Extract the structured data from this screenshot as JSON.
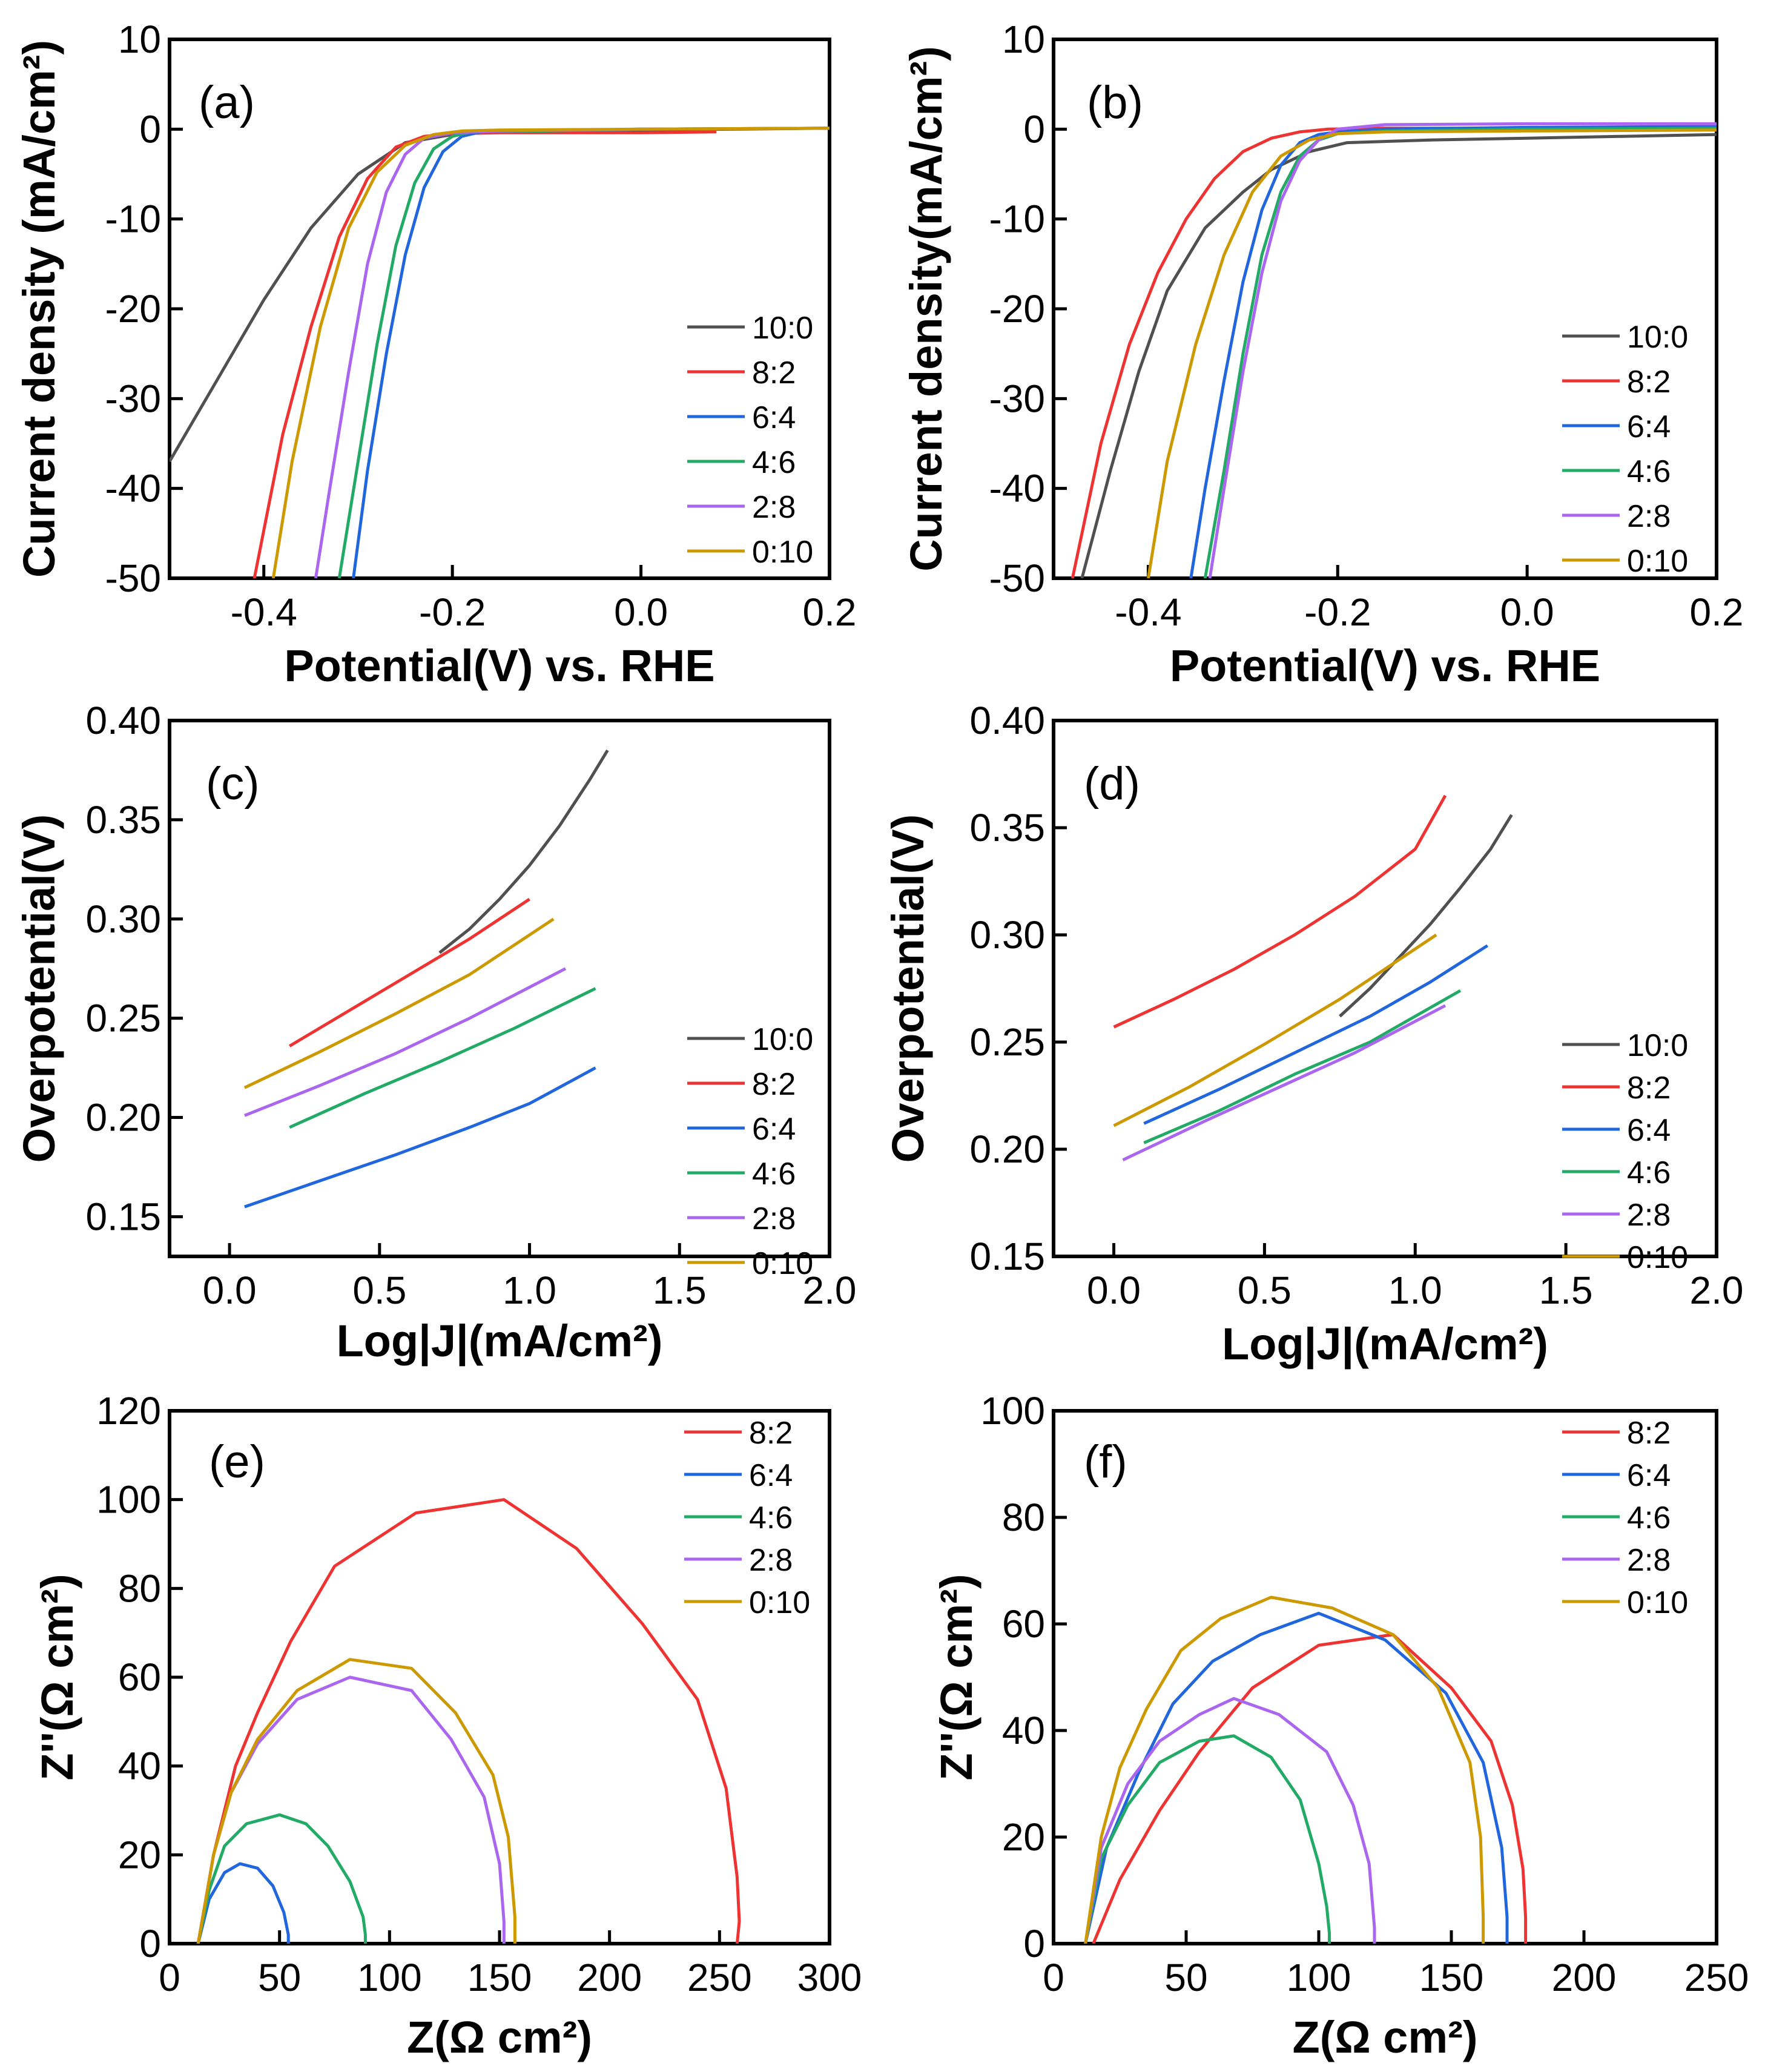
{
  "colors": {
    "10:0": "#505050",
    "8:2": "#ee3333",
    "6:4": "#2266dd",
    "4:6": "#22aa66",
    "2:8": "#aa66ee",
    "0:10": "#cc9900"
  },
  "chart_data": [
    {
      "id": "a",
      "type": "line",
      "title": "(a)",
      "xlabel": "Potential(V) vs. RHE",
      "ylabel": "Current density (mA/cm²)",
      "xlim": [
        -0.5,
        0.2
      ],
      "ylim": [
        -50,
        10
      ],
      "xticks": [
        -0.4,
        -0.2,
        0.0,
        0.2
      ],
      "xtick_labels": [
        "-0.4",
        "-0.2",
        "0.0",
        "0.2"
      ],
      "yticks": [
        10,
        0,
        -10,
        -20,
        -30,
        -40,
        -50
      ],
      "ytick_labels": [
        "10",
        "0",
        "-10",
        "-20",
        "-30",
        "-40",
        "-50"
      ],
      "legend_position": "right-middle",
      "series": [
        {
          "name": "10:0",
          "x": [
            -0.5,
            -0.45,
            -0.4,
            -0.35,
            -0.3,
            -0.25,
            -0.2,
            -0.15,
            -0.1,
            0.0,
            0.1,
            0.2
          ],
          "y": [
            -37,
            -28,
            -19,
            -11,
            -5,
            -1.5,
            -0.6,
            -0.3,
            -0.2,
            -0.1,
            0.0,
            0.1
          ]
        },
        {
          "name": "8:2",
          "x": [
            -0.41,
            -0.38,
            -0.35,
            -0.32,
            -0.29,
            -0.26,
            -0.23,
            -0.2,
            -0.15,
            0.0,
            0.08
          ],
          "y": [
            -50,
            -34,
            -22,
            -12,
            -5.5,
            -2,
            -0.8,
            -0.5,
            -0.4,
            -0.4,
            -0.3
          ]
        },
        {
          "name": "6:4",
          "x": [
            -0.305,
            -0.29,
            -0.27,
            -0.25,
            -0.23,
            -0.21,
            -0.19,
            -0.17,
            -0.1,
            0.0,
            0.2
          ],
          "y": [
            -50,
            -38,
            -25,
            -14,
            -6.5,
            -2.5,
            -0.8,
            -0.3,
            -0.2,
            0.0,
            0.1
          ]
        },
        {
          "name": "4:6",
          "x": [
            -0.32,
            -0.3,
            -0.28,
            -0.26,
            -0.24,
            -0.22,
            -0.2,
            -0.18,
            -0.1,
            0.0,
            0.2
          ],
          "y": [
            -50,
            -37,
            -24,
            -13,
            -6,
            -2.2,
            -0.8,
            -0.3,
            -0.2,
            0.0,
            0.1
          ]
        },
        {
          "name": "2:8",
          "x": [
            -0.345,
            -0.33,
            -0.31,
            -0.29,
            -0.27,
            -0.25,
            -0.23,
            -0.2,
            -0.15,
            0.0,
            0.2
          ],
          "y": [
            -50,
            -40,
            -27,
            -15,
            -7,
            -2.8,
            -1,
            -0.4,
            -0.2,
            0.0,
            0.1
          ]
        },
        {
          "name": "0:10",
          "x": [
            -0.39,
            -0.37,
            -0.34,
            -0.31,
            -0.28,
            -0.25,
            -0.22,
            -0.19,
            -0.15,
            0.0,
            0.2
          ],
          "y": [
            -50,
            -37,
            -22,
            -11,
            -4.8,
            -1.8,
            -0.6,
            -0.2,
            -0.1,
            0.0,
            0.1
          ]
        }
      ]
    },
    {
      "id": "b",
      "type": "line",
      "title": "(b)",
      "xlabel": "Potential(V) vs. RHE",
      "ylabel": "Current density(mA/cm²)",
      "xlim": [
        -0.5,
        0.2
      ],
      "ylim": [
        -50,
        10
      ],
      "xticks": [
        -0.4,
        -0.2,
        0.0,
        0.2
      ],
      "xtick_labels": [
        "-0.4",
        "-0.2",
        "0.0",
        "0.2"
      ],
      "yticks": [
        10,
        0,
        -10,
        -20,
        -30,
        -40,
        -50
      ],
      "ytick_labels": [
        "10",
        "0",
        "-10",
        "-20",
        "-30",
        "-40",
        "-50"
      ],
      "legend_position": "right-middle",
      "series": [
        {
          "name": "10:0",
          "x": [
            -0.47,
            -0.44,
            -0.41,
            -0.38,
            -0.34,
            -0.3,
            -0.27,
            -0.23,
            -0.19,
            -0.1,
            0.0,
            0.1,
            0.2
          ],
          "y": [
            -50,
            -38,
            -27,
            -18,
            -11,
            -7,
            -4.5,
            -2.5,
            -1.5,
            -1.2,
            -1.0,
            -0.8,
            -0.6
          ]
        },
        {
          "name": "8:2",
          "x": [
            -0.48,
            -0.45,
            -0.42,
            -0.39,
            -0.36,
            -0.33,
            -0.3,
            -0.27,
            -0.24,
            -0.21,
            -0.15,
            0.0,
            0.2
          ],
          "y": [
            -50,
            -35,
            -24,
            -16,
            -10,
            -5.5,
            -2.5,
            -1,
            -0.3,
            0.0,
            0.1,
            0.1,
            0.2
          ]
        },
        {
          "name": "6:4",
          "x": [
            -0.355,
            -0.34,
            -0.32,
            -0.3,
            -0.28,
            -0.26,
            -0.24,
            -0.22,
            -0.2,
            -0.15,
            0.0,
            0.2
          ],
          "y": [
            -50,
            -40,
            -28,
            -17,
            -9,
            -4,
            -1.5,
            -0.6,
            -0.3,
            0.0,
            0.2,
            0.3
          ]
        },
        {
          "name": "4:6",
          "x": [
            -0.34,
            -0.32,
            -0.3,
            -0.28,
            -0.26,
            -0.24,
            -0.22,
            -0.2,
            -0.15,
            0.0,
            0.2
          ],
          "y": [
            -50,
            -38,
            -25,
            -14,
            -7,
            -3,
            -1.2,
            -0.5,
            -0.2,
            0.0,
            0.1
          ]
        },
        {
          "name": "2:8",
          "x": [
            -0.335,
            -0.32,
            -0.3,
            -0.28,
            -0.26,
            -0.24,
            -0.22,
            -0.2,
            -0.15,
            0.0,
            0.2
          ],
          "y": [
            -50,
            -40,
            -27,
            -16,
            -8,
            -3.5,
            -1.2,
            0.0,
            0.5,
            0.6,
            0.6
          ]
        },
        {
          "name": "0:10",
          "x": [
            -0.4,
            -0.38,
            -0.35,
            -0.32,
            -0.29,
            -0.26,
            -0.23,
            -0.2,
            -0.15,
            0.0,
            0.2
          ],
          "y": [
            -50,
            -37,
            -24,
            -14,
            -7,
            -3,
            -1.2,
            -0.5,
            -0.3,
            -0.2,
            -0.1
          ]
        }
      ]
    },
    {
      "id": "c",
      "type": "line",
      "title": "(c)",
      "xlabel": "Log|J|(mA/cm²)",
      "ylabel": "Overpotential(V)",
      "xlim": [
        -0.2,
        2.0
      ],
      "ylim": [
        0.13,
        0.4
      ],
      "xticks": [
        0.0,
        0.5,
        1.0,
        1.5,
        2.0
      ],
      "xtick_labels": [
        "0.0",
        "0.5",
        "1.0",
        "1.5",
        "2.0"
      ],
      "yticks": [
        0.4,
        0.35,
        0.3,
        0.25,
        0.2,
        0.15
      ],
      "ytick_labels": [
        "0.40",
        "0.35",
        "0.30",
        "0.25",
        "0.20",
        "0.15"
      ],
      "legend_position": "lower-right",
      "series": [
        {
          "name": "10:0",
          "x": [
            0.7,
            0.8,
            0.9,
            1.0,
            1.1,
            1.2,
            1.26
          ],
          "y": [
            0.283,
            0.295,
            0.31,
            0.327,
            0.347,
            0.37,
            0.385
          ]
        },
        {
          "name": "8:2",
          "x": [
            0.2,
            0.4,
            0.6,
            0.8,
            1.0
          ],
          "y": [
            0.236,
            0.254,
            0.272,
            0.29,
            0.31
          ]
        },
        {
          "name": "6:4",
          "x": [
            0.05,
            0.3,
            0.55,
            0.8,
            1.0,
            1.22
          ],
          "y": [
            0.155,
            0.168,
            0.181,
            0.195,
            0.207,
            0.225
          ]
        },
        {
          "name": "4:6",
          "x": [
            0.2,
            0.45,
            0.7,
            0.95,
            1.22
          ],
          "y": [
            0.195,
            0.212,
            0.228,
            0.245,
            0.265
          ]
        },
        {
          "name": "2:8",
          "x": [
            0.05,
            0.3,
            0.55,
            0.8,
            1.12
          ],
          "y": [
            0.201,
            0.216,
            0.232,
            0.25,
            0.275
          ]
        },
        {
          "name": "0:10",
          "x": [
            0.05,
            0.3,
            0.55,
            0.8,
            1.08
          ],
          "y": [
            0.215,
            0.233,
            0.252,
            0.272,
            0.3
          ]
        }
      ]
    },
    {
      "id": "d",
      "type": "line",
      "title": "(d)",
      "xlabel": "Log|J|(mA/cm²)",
      "ylabel": "Overpotential(V)",
      "xlim": [
        -0.2,
        2.0
      ],
      "ylim": [
        0.15,
        0.4
      ],
      "xticks": [
        0.0,
        0.5,
        1.0,
        1.5,
        2.0
      ],
      "xtick_labels": [
        "0.0",
        "0.5",
        "1.0",
        "1.5",
        "2.0"
      ],
      "yticks": [
        0.4,
        0.35,
        0.3,
        0.25,
        0.2,
        0.15
      ],
      "ytick_labels": [
        "0.40",
        "0.35",
        "0.30",
        "0.25",
        "0.20",
        "0.15"
      ],
      "legend_position": "lower-right",
      "series": [
        {
          "name": "10:0",
          "x": [
            0.75,
            0.85,
            0.95,
            1.05,
            1.15,
            1.25,
            1.32
          ],
          "y": [
            0.262,
            0.275,
            0.29,
            0.305,
            0.322,
            0.34,
            0.356
          ]
        },
        {
          "name": "8:2",
          "x": [
            0.0,
            0.2,
            0.4,
            0.6,
            0.8,
            1.0,
            1.1
          ],
          "y": [
            0.257,
            0.27,
            0.284,
            0.3,
            0.318,
            0.34,
            0.365
          ]
        },
        {
          "name": "6:4",
          "x": [
            0.1,
            0.35,
            0.6,
            0.85,
            1.05,
            1.24
          ],
          "y": [
            0.212,
            0.228,
            0.245,
            0.262,
            0.278,
            0.295
          ]
        },
        {
          "name": "4:6",
          "x": [
            0.1,
            0.35,
            0.6,
            0.85,
            1.15
          ],
          "y": [
            0.203,
            0.218,
            0.235,
            0.25,
            0.274
          ]
        },
        {
          "name": "2:8",
          "x": [
            0.03,
            0.3,
            0.55,
            0.8,
            1.1
          ],
          "y": [
            0.195,
            0.213,
            0.229,
            0.245,
            0.267
          ]
        },
        {
          "name": "0:10",
          "x": [
            0.0,
            0.25,
            0.5,
            0.75,
            1.07
          ],
          "y": [
            0.211,
            0.229,
            0.249,
            0.27,
            0.3
          ]
        }
      ]
    },
    {
      "id": "e",
      "type": "line",
      "title": "(e)",
      "xlabel": "Z(Ω cm²)",
      "ylabel": "Z''(Ω cm²)",
      "xlim": [
        0,
        300
      ],
      "ylim": [
        0,
        120
      ],
      "xticks": [
        0,
        50,
        100,
        150,
        200,
        250,
        300
      ],
      "xtick_labels": [
        "0",
        "50",
        "100",
        "150",
        "200",
        "250",
        "300"
      ],
      "yticks": [
        0,
        20,
        40,
        60,
        80,
        100,
        120
      ],
      "ytick_labels": [
        "0",
        "20",
        "40",
        "60",
        "80",
        "100",
        "120"
      ],
      "legend_position": "top-right",
      "series": [
        {
          "name": "8:2",
          "x": [
            13,
            20,
            30,
            40,
            55,
            75,
            112,
            152,
            185,
            215,
            240,
            253,
            258,
            259,
            258
          ],
          "y": [
            0,
            20,
            40,
            52,
            68,
            85,
            97,
            100,
            89,
            72,
            55,
            35,
            15,
            5,
            0
          ]
        },
        {
          "name": "6:4",
          "x": [
            13,
            18,
            25,
            32,
            40,
            47,
            52,
            54,
            54
          ],
          "y": [
            0,
            10,
            16,
            18,
            17,
            13,
            7,
            2,
            0
          ]
        },
        {
          "name": "4:6",
          "x": [
            13,
            18,
            25,
            35,
            50,
            62,
            72,
            82,
            88,
            89,
            89
          ],
          "y": [
            0,
            12,
            22,
            27,
            29,
            27,
            22,
            14,
            6,
            2,
            0
          ]
        },
        {
          "name": "2:8",
          "x": [
            13,
            20,
            28,
            40,
            58,
            82,
            110,
            128,
            143,
            150,
            152,
            152
          ],
          "y": [
            0,
            20,
            34,
            45,
            55,
            60,
            57,
            46,
            33,
            18,
            5,
            0
          ]
        },
        {
          "name": "0:10",
          "x": [
            13,
            20,
            28,
            40,
            58,
            82,
            110,
            130,
            147,
            154,
            157,
            157
          ],
          "y": [
            0,
            20,
            34,
            46,
            57,
            64,
            62,
            52,
            38,
            24,
            6,
            0
          ]
        }
      ]
    },
    {
      "id": "f",
      "type": "line",
      "title": "(f)",
      "xlabel": "Z(Ω cm²)",
      "ylabel": "Z''(Ω cm²)",
      "xlim": [
        0,
        250
      ],
      "ylim": [
        0,
        100
      ],
      "xticks": [
        0,
        50,
        100,
        150,
        200,
        250
      ],
      "xtick_labels": [
        "0",
        "50",
        "100",
        "150",
        "200",
        "250"
      ],
      "yticks": [
        0,
        20,
        40,
        60,
        80,
        100
      ],
      "ytick_labels": [
        "0",
        "20",
        "40",
        "60",
        "80",
        "100"
      ],
      "legend_position": "top-right",
      "series": [
        {
          "name": "8:2",
          "x": [
            15,
            25,
            40,
            55,
            75,
            100,
            128,
            150,
            165,
            173,
            177,
            178,
            178
          ],
          "y": [
            0,
            12,
            25,
            36,
            48,
            56,
            58,
            48,
            38,
            26,
            14,
            5,
            0
          ]
        },
        {
          "name": "6:4",
          "x": [
            12,
            20,
            32,
            45,
            60,
            78,
            100,
            125,
            148,
            162,
            169,
            171,
            171
          ],
          "y": [
            0,
            18,
            32,
            45,
            53,
            58,
            62,
            57,
            47,
            34,
            18,
            5,
            0
          ]
        },
        {
          "name": "4:6",
          "x": [
            12,
            18,
            28,
            40,
            55,
            68,
            82,
            93,
            100,
            103,
            104,
            104
          ],
          "y": [
            0,
            16,
            26,
            34,
            38,
            39,
            35,
            27,
            15,
            7,
            2,
            0
          ]
        },
        {
          "name": "2:8",
          "x": [
            12,
            18,
            28,
            40,
            55,
            68,
            85,
            103,
            113,
            119,
            121,
            121
          ],
          "y": [
            0,
            18,
            30,
            38,
            43,
            46,
            43,
            36,
            26,
            15,
            3,
            0
          ]
        },
        {
          "name": "0:10",
          "x": [
            12,
            18,
            25,
            35,
            48,
            63,
            82,
            105,
            128,
            145,
            157,
            161,
            162,
            162
          ],
          "y": [
            0,
            20,
            33,
            44,
            55,
            61,
            65,
            63,
            58,
            48,
            34,
            20,
            5,
            0
          ]
        }
      ]
    }
  ]
}
